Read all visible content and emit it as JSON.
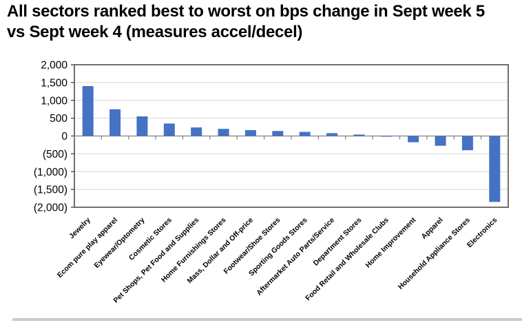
{
  "header": {
    "title": "All sectors ranked best to worst on bps change in Sept week 5 vs Sept week 4 (measures accel/decel)"
  },
  "chart_data": {
    "type": "bar",
    "title": "All sectors ranked best to worst on bps change in Sept week 5 vs Sept week 4 (measures accel/decel)",
    "categories": [
      "Jewelry",
      "Ecom pure play apparel",
      "Eyewear/Optometry",
      "Cosmetic Stores",
      "Pet Shops, Pet Food and Supplies",
      "Home Furnishings Stores",
      "Mass, Dollar and Off-price",
      "Footwear/Shoe Stores",
      "Sporting Goods Stores",
      "Aftermarket Auto Parts/Service",
      "Department Stores",
      "Food Retail and Wholesale Clubs",
      "Home Improvement",
      "Apparel",
      "Household Appliance Stores",
      "Electronics"
    ],
    "values": [
      1400,
      750,
      550,
      350,
      240,
      200,
      165,
      140,
      115,
      80,
      40,
      -15,
      -175,
      -275,
      -400,
      -1850
    ],
    "xlabel": "",
    "ylabel": "",
    "ylim": [
      -2000,
      2000
    ],
    "grid": true,
    "legend": "none",
    "y_ticks": [
      {
        "value": 2000,
        "label": "2,000"
      },
      {
        "value": 1500,
        "label": "1,500"
      },
      {
        "value": 1000,
        "label": "1,000"
      },
      {
        "value": 500,
        "label": "500"
      },
      {
        "value": 0,
        "label": "0"
      },
      {
        "value": -500,
        "label": "(500)"
      },
      {
        "value": -1000,
        "label": "(1,000)"
      },
      {
        "value": -1500,
        "label": "(1,500)"
      },
      {
        "value": -2000,
        "label": "(2,000)"
      }
    ],
    "colors": {
      "bar": "#4472C4",
      "gridline": "#d6d6d6",
      "plot_border": "#4d4d4d",
      "zero_axis": "#7f7f7f",
      "tick": "#4d4d4d",
      "text": "#000000",
      "divider": "#cbcbcb"
    }
  }
}
